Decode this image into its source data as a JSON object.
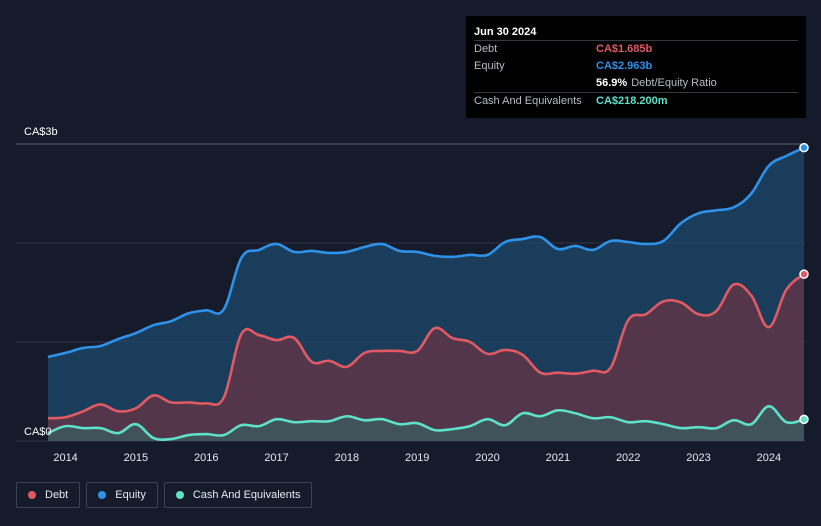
{
  "tooltip": {
    "date": "Jun 30 2024",
    "rows": [
      {
        "label": "Debt",
        "value": "CA$1.685b",
        "color": "#e05a63"
      },
      {
        "label": "Equity",
        "value": "CA$2.963b",
        "color": "#2d92e8"
      },
      {
        "label": "",
        "value": "56.9%",
        "extra": "Debt/Equity Ratio",
        "color": "#ffffff"
      },
      {
        "label": "Cash And Equivalents",
        "value": "CA$218.200m",
        "color": "#5fe0c8"
      }
    ]
  },
  "legend": [
    {
      "label": "Debt",
      "color": "#e05a63"
    },
    {
      "label": "Equity",
      "color": "#2d92e8"
    },
    {
      "label": "Cash And Equivalents",
      "color": "#5fe0c8"
    }
  ],
  "chart_data": {
    "type": "area",
    "y_top_label": "CA$3b",
    "y_bottom_label": "CA$0",
    "ylim": [
      0,
      3.0
    ],
    "xlim": [
      2013.75,
      2024.5
    ],
    "x_ticks": [
      "2014",
      "2015",
      "2016",
      "2017",
      "2018",
      "2019",
      "2020",
      "2021",
      "2022",
      "2023",
      "2024"
    ],
    "grid": true,
    "legend_position": "bottom-left",
    "series": [
      {
        "name": "Equity",
        "color": "#2d92e8",
        "x": [
          2013.75,
          2014.0,
          2014.25,
          2014.5,
          2014.75,
          2015.0,
          2015.25,
          2015.5,
          2015.75,
          2016.0,
          2016.25,
          2016.5,
          2016.75,
          2017.0,
          2017.25,
          2017.5,
          2017.75,
          2018.0,
          2018.25,
          2018.5,
          2018.75,
          2019.0,
          2019.25,
          2019.5,
          2019.75,
          2020.0,
          2020.25,
          2020.5,
          2020.75,
          2021.0,
          2021.25,
          2021.5,
          2021.75,
          2022.0,
          2022.25,
          2022.5,
          2022.75,
          2023.0,
          2023.25,
          2023.5,
          2023.75,
          2024.0,
          2024.25,
          2024.5
        ],
        "values": [
          0.85,
          0.89,
          0.94,
          0.96,
          1.03,
          1.09,
          1.17,
          1.21,
          1.29,
          1.32,
          1.33,
          1.85,
          1.93,
          1.99,
          1.91,
          1.92,
          1.9,
          1.91,
          1.96,
          1.99,
          1.92,
          1.91,
          1.87,
          1.86,
          1.88,
          1.88,
          2.01,
          2.04,
          2.06,
          1.94,
          1.97,
          1.93,
          2.02,
          2.01,
          1.99,
          2.02,
          2.2,
          2.3,
          2.33,
          2.36,
          2.5,
          2.78,
          2.88,
          2.963
        ]
      },
      {
        "name": "Debt",
        "color": "#e05a63",
        "x": [
          2013.75,
          2014.0,
          2014.25,
          2014.5,
          2014.75,
          2015.0,
          2015.25,
          2015.5,
          2015.75,
          2016.0,
          2016.25,
          2016.5,
          2016.75,
          2017.0,
          2017.25,
          2017.5,
          2017.75,
          2018.0,
          2018.25,
          2018.5,
          2018.75,
          2019.0,
          2019.25,
          2019.5,
          2019.75,
          2020.0,
          2020.25,
          2020.5,
          2020.75,
          2021.0,
          2021.25,
          2021.5,
          2021.75,
          2022.0,
          2022.25,
          2022.5,
          2022.75,
          2023.0,
          2023.25,
          2023.5,
          2023.75,
          2024.0,
          2024.25,
          2024.5
        ],
        "values": [
          0.23,
          0.24,
          0.3,
          0.37,
          0.3,
          0.33,
          0.46,
          0.39,
          0.39,
          0.38,
          0.44,
          1.08,
          1.07,
          1.02,
          1.04,
          0.8,
          0.81,
          0.75,
          0.89,
          0.91,
          0.91,
          0.91,
          1.14,
          1.04,
          1.0,
          0.88,
          0.92,
          0.87,
          0.69,
          0.69,
          0.68,
          0.71,
          0.74,
          1.22,
          1.28,
          1.41,
          1.4,
          1.28,
          1.31,
          1.58,
          1.47,
          1.15,
          1.53,
          1.685
        ]
      },
      {
        "name": "Cash And Equivalents",
        "color": "#5fe0c8",
        "x": [
          2013.75,
          2014.0,
          2014.25,
          2014.5,
          2014.75,
          2015.0,
          2015.25,
          2015.5,
          2015.75,
          2016.0,
          2016.25,
          2016.5,
          2016.75,
          2017.0,
          2017.25,
          2017.5,
          2017.75,
          2018.0,
          2018.25,
          2018.5,
          2018.75,
          2019.0,
          2019.25,
          2019.5,
          2019.75,
          2020.0,
          2020.25,
          2020.5,
          2020.75,
          2021.0,
          2021.25,
          2021.5,
          2021.75,
          2022.0,
          2022.25,
          2022.5,
          2022.75,
          2023.0,
          2023.25,
          2023.5,
          2023.75,
          2024.0,
          2024.25,
          2024.5
        ],
        "values": [
          0.08,
          0.15,
          0.13,
          0.13,
          0.08,
          0.17,
          0.03,
          0.02,
          0.06,
          0.07,
          0.06,
          0.16,
          0.15,
          0.22,
          0.19,
          0.2,
          0.2,
          0.25,
          0.21,
          0.22,
          0.17,
          0.18,
          0.11,
          0.12,
          0.15,
          0.22,
          0.16,
          0.28,
          0.25,
          0.31,
          0.28,
          0.23,
          0.24,
          0.19,
          0.2,
          0.17,
          0.13,
          0.14,
          0.13,
          0.21,
          0.17,
          0.35,
          0.19,
          0.2182
        ]
      }
    ]
  }
}
